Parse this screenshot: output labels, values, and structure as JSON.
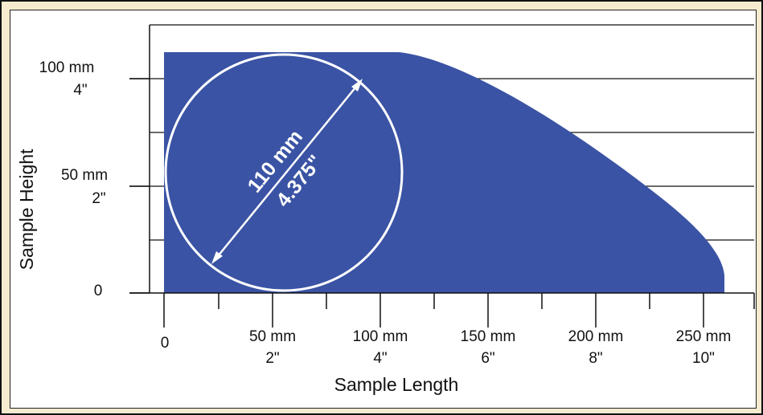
{
  "diagram": {
    "x_axis_title": "Sample Length",
    "y_axis_title": "Sample Height",
    "x_ticks": [
      {
        "line1": "0",
        "line2": ""
      },
      {
        "line1": "50 mm",
        "line2": "2\""
      },
      {
        "line1": "100 mm",
        "line2": "4\""
      },
      {
        "line1": "150 mm",
        "line2": "6\""
      },
      {
        "line1": "200 mm",
        "line2": "8\""
      },
      {
        "line1": "250 mm",
        "line2": "10\""
      }
    ],
    "y_ticks": [
      {
        "line1": "0",
        "line2": ""
      },
      {
        "line1": "50 mm",
        "line2": "2\""
      },
      {
        "line1": "100 mm",
        "line2": "4\""
      }
    ],
    "circle_label_mm": "110 mm",
    "circle_label_in": "4.375\"",
    "colors": {
      "region_fill": "#3A53A4",
      "background": "#F7EBCF",
      "panel": "#FFFFFF",
      "axis": "#111111",
      "circle": "#FFFFFF"
    }
  }
}
